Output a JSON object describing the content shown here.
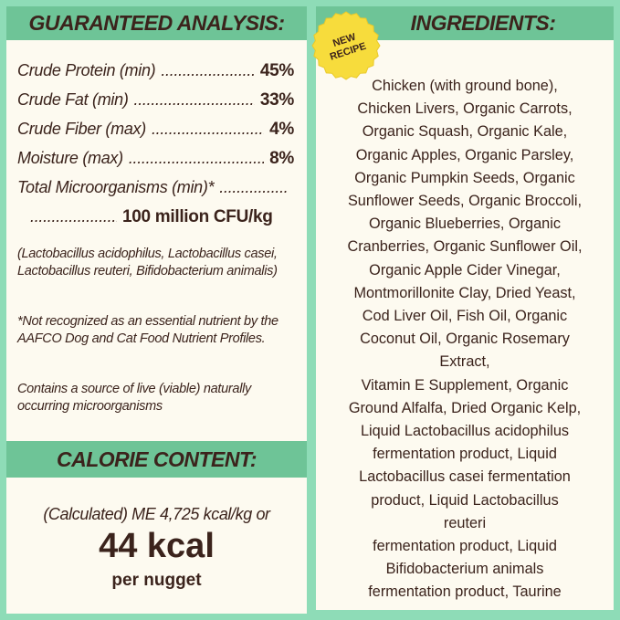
{
  "analysis": {
    "title": "GUARANTEED ANALYSIS:",
    "rows": [
      {
        "label": "Crude Protein (min)",
        "value": "45%"
      },
      {
        "label": "Crude Fat (min)",
        "value": "33%"
      },
      {
        "label": "Crude Fiber (max)",
        "value": "4%"
      },
      {
        "label": "Moisture (max)",
        "value": "8%"
      },
      {
        "label": "Total Microorganisms (min)*",
        "value": ""
      },
      {
        "label": "",
        "value": "100 million CFU/kg"
      }
    ],
    "notes": [
      "(Lactobacillus acidophilus, Lactobacillus casei, Lactobacillus reuteri, Bifidobacterium animalis)",
      "*Not recognized as an essential nutrient by the AAFCO Dog and Cat Food Nutrient Profiles.",
      "Contains a source of live (viable) naturally occurring microorganisms"
    ]
  },
  "calorie": {
    "title": "CALORIE CONTENT:",
    "line1": "(Calculated) ME 4,725 kcal/kg or",
    "big": "44 kcal",
    "sub": "per nugget"
  },
  "ingredients": {
    "title": "INGREDIENTS:",
    "badge": {
      "line1": "NEW",
      "line2": "RECIPE",
      "color": "#f7dc3c"
    },
    "lines": [
      "Chicken (with ground bone),",
      "Chicken Livers, Organic Carrots,",
      "Organic Squash, Organic Kale,",
      "Organic Apples, Organic Parsley,",
      "Organic Pumpkin Seeds, Organic",
      "Sunflower Seeds, Organic Broccoli,",
      "Organic Blueberries, Organic",
      "Cranberries, Organic Sunflower Oil,",
      "Organic Apple Cider Vinegar,",
      "Montmorillonite Clay, Dried Yeast,",
      "Cod Liver Oil, Fish Oil, Organic",
      "Coconut Oil, Organic Rosemary",
      "Extract,",
      "Vitamin E Supplement, Organic",
      "Ground Alfalfa, Dried Organic Kelp,",
      "Liquid Lactobacillus acidophilus",
      "fermentation product, Liquid",
      "Lactobacillus casei fermentation",
      "product, Liquid Lactobacillus",
      "reuteri",
      "fermentation product, Liquid",
      "Bifidobacterium animals",
      "fermentation product, Taurine"
    ]
  },
  "colors": {
    "background": "#8edcb7",
    "header": "#6ec497",
    "panel": "#fdfaf0",
    "text": "#3b231c"
  }
}
